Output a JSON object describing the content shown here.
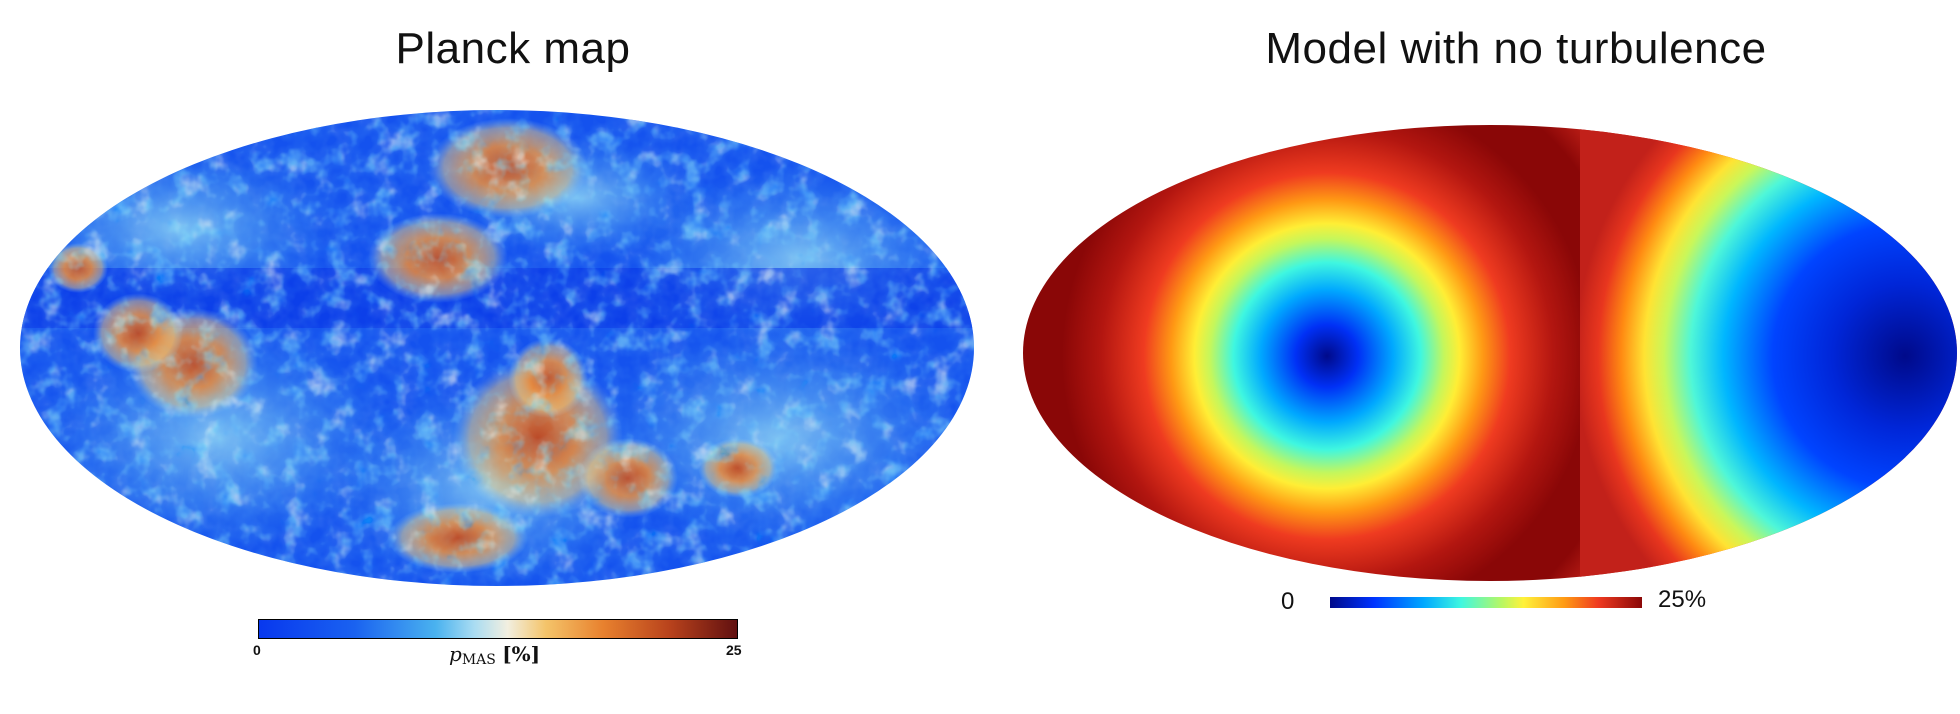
{
  "left": {
    "title": "Planck map",
    "colorbar": {
      "min_label": "0",
      "max_label": "25",
      "label_var": "p",
      "label_sub": "MAS",
      "label_unit": "[%]"
    }
  },
  "right": {
    "title": "Model with no turbulence",
    "colorbar": {
      "min_label": "0",
      "max_label": "25%"
    }
  },
  "colors": {
    "planck_low": "#0a3ff0",
    "planck_mid": "#f2efe0",
    "planck_high": "#611010",
    "jet_low": "#000a8a",
    "jet_high": "#8a0707"
  }
}
